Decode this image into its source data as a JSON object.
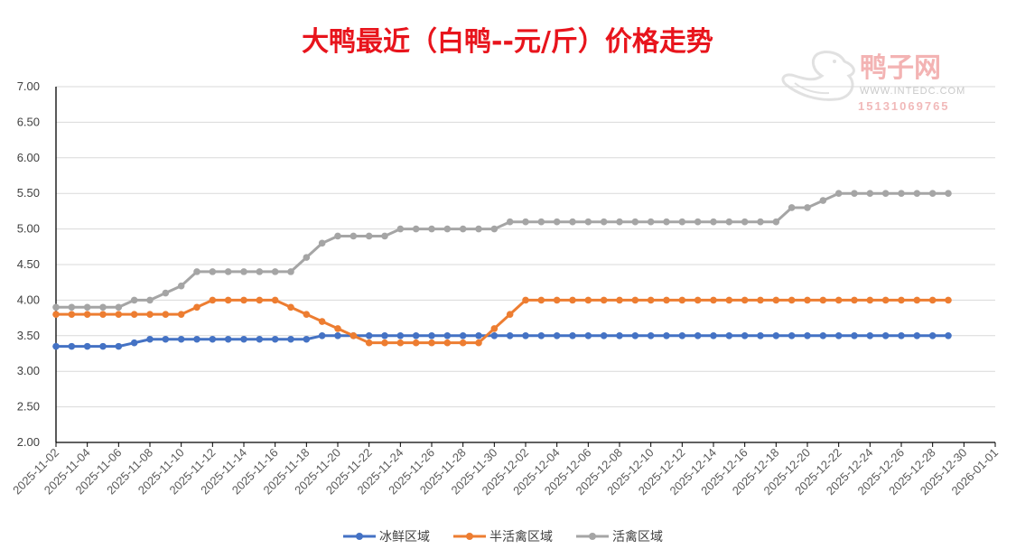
{
  "chart_data": {
    "type": "line",
    "title": "大鸭最近（白鸭--元/斤）价格走势",
    "xlabel": "",
    "ylabel": "",
    "ylim": [
      2.0,
      7.0
    ],
    "yticks": [
      "2.00",
      "2.50",
      "3.00",
      "3.50",
      "4.00",
      "4.50",
      "5.00",
      "5.50",
      "6.00",
      "6.50",
      "7.00"
    ],
    "x_range": [
      "2025-11-02",
      "2026-01-01"
    ],
    "xticks": [
      "2025-11-02",
      "2025-11-04",
      "2025-11-06",
      "2025-11-08",
      "2025-11-10",
      "2025-11-12",
      "2025-11-14",
      "2025-11-16",
      "2025-11-18",
      "2025-11-20",
      "2025-11-22",
      "2025-11-24",
      "2025-11-26",
      "2025-11-28",
      "2025-11-30",
      "2025-12-02",
      "2025-12-04",
      "2025-12-06",
      "2025-12-08",
      "2025-12-10",
      "2025-12-12",
      "2025-12-14",
      "2025-12-16",
      "2025-12-18",
      "2025-12-20",
      "2025-12-22",
      "2025-12-24",
      "2025-12-26",
      "2025-12-28",
      "2025-12-30",
      "2026-01-01"
    ],
    "x": [
      "2025-11-02",
      "2025-11-03",
      "2025-11-04",
      "2025-11-05",
      "2025-11-06",
      "2025-11-07",
      "2025-11-08",
      "2025-11-09",
      "2025-11-10",
      "2025-11-11",
      "2025-11-12",
      "2025-11-13",
      "2025-11-14",
      "2025-11-15",
      "2025-11-16",
      "2025-11-17",
      "2025-11-18",
      "2025-11-19",
      "2025-11-20",
      "2025-11-21",
      "2025-11-22",
      "2025-11-23",
      "2025-11-24",
      "2025-11-25",
      "2025-11-26",
      "2025-11-27",
      "2025-11-28",
      "2025-11-29",
      "2025-11-30",
      "2025-12-01",
      "2025-12-02",
      "2025-12-03",
      "2025-12-04",
      "2025-12-05",
      "2025-12-06",
      "2025-12-07",
      "2025-12-08",
      "2025-12-09",
      "2025-12-10",
      "2025-12-11",
      "2025-12-12",
      "2025-12-13",
      "2025-12-14",
      "2025-12-15",
      "2025-12-16",
      "2025-12-17",
      "2025-12-18",
      "2025-12-19",
      "2025-12-20",
      "2025-12-21",
      "2025-12-22",
      "2025-12-23",
      "2025-12-24",
      "2025-12-25",
      "2025-12-26",
      "2025-12-27",
      "2025-12-28",
      "2025-12-29"
    ],
    "series": [
      {
        "name": "冰鲜区域",
        "color": "#4472c4",
        "values": [
          3.35,
          3.35,
          3.35,
          3.35,
          3.35,
          3.4,
          3.45,
          3.45,
          3.45,
          3.45,
          3.45,
          3.45,
          3.45,
          3.45,
          3.45,
          3.45,
          3.45,
          3.5,
          3.5,
          3.5,
          3.5,
          3.5,
          3.5,
          3.5,
          3.5,
          3.5,
          3.5,
          3.5,
          3.5,
          3.5,
          3.5,
          3.5,
          3.5,
          3.5,
          3.5,
          3.5,
          3.5,
          3.5,
          3.5,
          3.5,
          3.5,
          3.5,
          3.5,
          3.5,
          3.5,
          3.5,
          3.5,
          3.5,
          3.5,
          3.5,
          3.5,
          3.5,
          3.5,
          3.5,
          3.5,
          3.5,
          3.5,
          3.5
        ]
      },
      {
        "name": "半活禽区域",
        "color": "#ed7d31",
        "values": [
          3.8,
          3.8,
          3.8,
          3.8,
          3.8,
          3.8,
          3.8,
          3.8,
          3.8,
          3.9,
          4.0,
          4.0,
          4.0,
          4.0,
          4.0,
          3.9,
          3.8,
          3.7,
          3.6,
          3.5,
          3.4,
          3.4,
          3.4,
          3.4,
          3.4,
          3.4,
          3.4,
          3.4,
          3.6,
          3.8,
          4.0,
          4.0,
          4.0,
          4.0,
          4.0,
          4.0,
          4.0,
          4.0,
          4.0,
          4.0,
          4.0,
          4.0,
          4.0,
          4.0,
          4.0,
          4.0,
          4.0,
          4.0,
          4.0,
          4.0,
          4.0,
          4.0,
          4.0,
          4.0,
          4.0,
          4.0,
          4.0,
          4.0
        ]
      },
      {
        "name": "活禽区域",
        "color": "#a5a5a5",
        "values": [
          3.9,
          3.9,
          3.9,
          3.9,
          3.9,
          4.0,
          4.0,
          4.1,
          4.2,
          4.4,
          4.4,
          4.4,
          4.4,
          4.4,
          4.4,
          4.4,
          4.6,
          4.8,
          4.9,
          4.9,
          4.9,
          4.9,
          5.0,
          5.0,
          5.0,
          5.0,
          5.0,
          5.0,
          5.0,
          5.1,
          5.1,
          5.1,
          5.1,
          5.1,
          5.1,
          5.1,
          5.1,
          5.1,
          5.1,
          5.1,
          5.1,
          5.1,
          5.1,
          5.1,
          5.1,
          5.1,
          5.1,
          5.3,
          5.3,
          5.4,
          5.5,
          5.5,
          5.5,
          5.5,
          5.5,
          5.5,
          5.5,
          5.5
        ]
      }
    ],
    "legend": "bottom",
    "grid": true
  },
  "watermark": {
    "brand": "鸭子网",
    "url": "WWW.INTEDC.COM",
    "phone": "15131069765"
  }
}
